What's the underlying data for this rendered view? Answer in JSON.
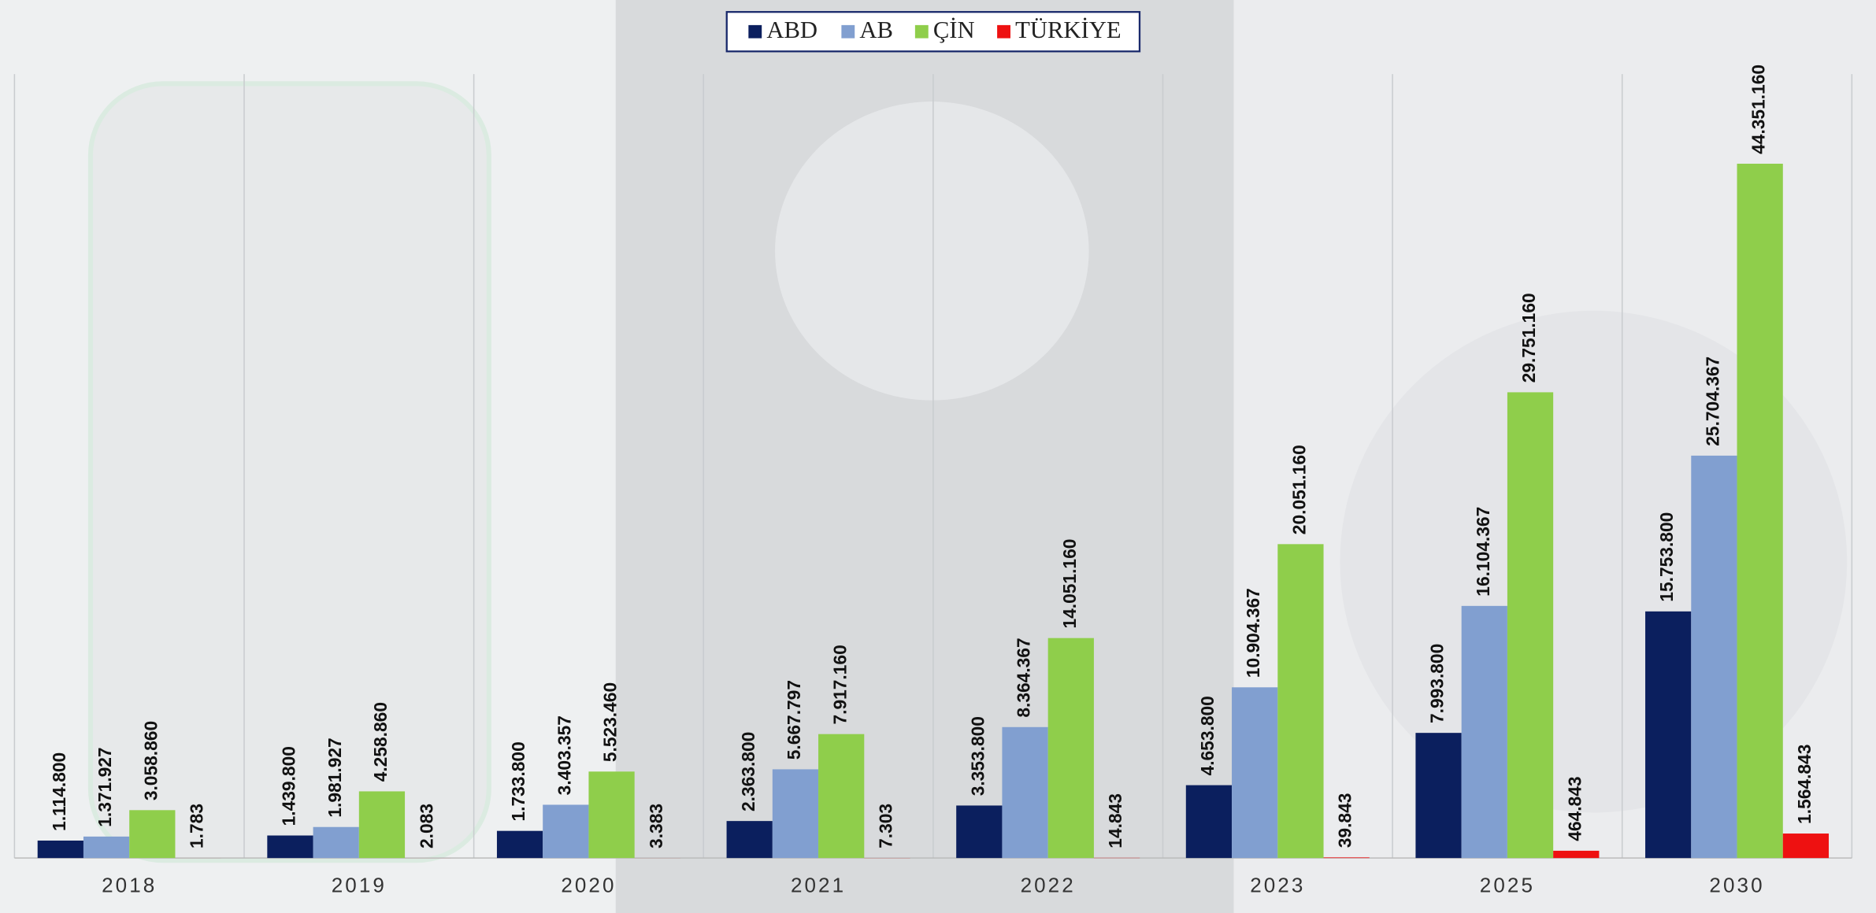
{
  "chart_data": {
    "type": "bar",
    "categories": [
      "2018",
      "2019",
      "2020",
      "2021",
      "2022",
      "2023",
      "2025",
      "2030"
    ],
    "series": [
      {
        "name": "ABD",
        "color": "#0b1f5e",
        "values": [
          1114800,
          1439800,
          1733800,
          2363800,
          3353800,
          4653800,
          7993800,
          15753800
        ],
        "value_labels": [
          "1.114.800",
          "1.439.800",
          "1.733.800",
          "2.363.800",
          "3.353.800",
          "4.653.800",
          "7.993.800",
          "15.753.800"
        ]
      },
      {
        "name": "AB",
        "color": "#819fd0",
        "values": [
          1371927,
          1981927,
          3403357,
          5667797,
          8364367,
          10904367,
          16104367,
          25704367
        ],
        "value_labels": [
          "1.371.927",
          "1.981.927",
          "3.403.357",
          "5.667.797",
          "8.364.367",
          "10.904.367",
          "16.104.367",
          "25.704.367"
        ]
      },
      {
        "name": "ÇİN",
        "color": "#8fce4b",
        "values": [
          3058860,
          4258860,
          5523460,
          7917160,
          14051160,
          20051160,
          29751160,
          44351160
        ],
        "value_labels": [
          "3.058.860",
          "4.258.860",
          "5.523.460",
          "7.917.160",
          "14.051.160",
          "20.051.160",
          "29.751.160",
          "44.351.160"
        ]
      },
      {
        "name": "TÜRKİYE",
        "color": "#ee1111",
        "values": [
          1783,
          2083,
          3383,
          7303,
          14843,
          39843,
          464843,
          1564843
        ],
        "value_labels": [
          "1.783",
          "2.083",
          "3.383",
          "7.303",
          "14.843",
          "39.843",
          "464.843",
          "1.564.843"
        ]
      }
    ],
    "legend": "top"
  }
}
